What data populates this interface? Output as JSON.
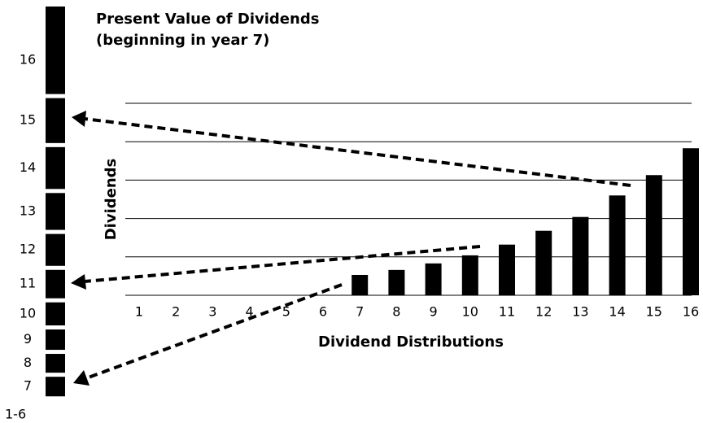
{
  "chart_data": [
    {
      "type": "bar",
      "title": "Present Value of Dividends",
      "subtitle": "(beginning in year 7)",
      "y_label": "Dividends",
      "x_label": "Dividend Distributions",
      "categories": [
        "1",
        "2",
        "3",
        "4",
        "5",
        "6",
        "7",
        "8",
        "9",
        "10",
        "11",
        "12",
        "13",
        "14",
        "15",
        "16"
      ],
      "values": [
        null,
        null,
        null,
        null,
        null,
        null,
        0.53,
        0.66,
        0.83,
        1.04,
        1.32,
        1.68,
        2.04,
        2.6,
        3.13,
        3.83
      ],
      "color": "#000000",
      "ylim": [
        0,
        5
      ],
      "yticks": [
        0,
        1,
        2,
        3,
        4,
        5
      ],
      "ytick_labels": false,
      "grid": true
    },
    {
      "type": "stacked_column",
      "categories": [
        "16",
        "15",
        "14",
        "13",
        "12",
        "11",
        "10",
        "9",
        "8",
        "7",
        "1-6"
      ],
      "values": [
        2.28,
        1.17,
        1.09,
        0.96,
        0.83,
        0.74,
        0.6,
        0.53,
        0.49,
        0.51,
        null
      ],
      "color": "#000000"
    }
  ]
}
